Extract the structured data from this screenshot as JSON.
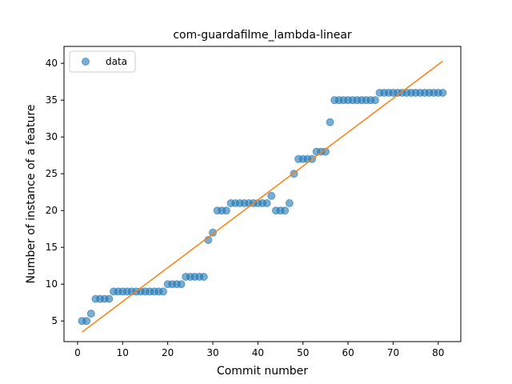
{
  "chart_data": {
    "type": "scatter",
    "title": "com-guardafilme_lambda-linear",
    "xlabel": "Commit number",
    "ylabel": "Number of instance of a feature",
    "xlim": [
      -3,
      85
    ],
    "ylim": [
      2.2,
      42.3
    ],
    "xticks": [
      0,
      10,
      20,
      30,
      40,
      50,
      60,
      70,
      80
    ],
    "yticks": [
      5,
      10,
      15,
      20,
      25,
      30,
      35,
      40
    ],
    "grid": false,
    "legend": {
      "position": "top-left",
      "entries": [
        "data"
      ]
    },
    "colors": {
      "data": "#1f77b4",
      "fit": "#ff7f0e"
    },
    "series": [
      {
        "name": "data",
        "type": "scatter",
        "x": [
          1,
          2,
          3,
          4,
          5,
          6,
          7,
          8,
          9,
          10,
          11,
          12,
          13,
          14,
          15,
          16,
          17,
          18,
          19,
          20,
          21,
          22,
          23,
          24,
          25,
          26,
          27,
          28,
          29,
          30,
          31,
          32,
          33,
          34,
          35,
          36,
          37,
          38,
          39,
          40,
          41,
          42,
          43,
          44,
          45,
          46,
          47,
          48,
          49,
          50,
          51,
          52,
          53,
          54,
          55,
          56,
          57,
          58,
          59,
          60,
          61,
          62,
          63,
          64,
          65,
          66,
          67,
          68,
          69,
          70,
          71,
          72,
          73,
          74,
          75,
          76,
          77,
          78,
          79,
          80,
          81
        ],
        "y": [
          5,
          5,
          6,
          8,
          8,
          8,
          8,
          9,
          9,
          9,
          9,
          9,
          9,
          9,
          9,
          9,
          9,
          9,
          9,
          10,
          10,
          10,
          10,
          11,
          11,
          11,
          11,
          11,
          16,
          17,
          20,
          20,
          20,
          21,
          21,
          21,
          21,
          21,
          21,
          21,
          21,
          21,
          22,
          20,
          20,
          20,
          21,
          25,
          27,
          27,
          27,
          27,
          28,
          28,
          28,
          32,
          35,
          35,
          35,
          35,
          35,
          35,
          35,
          35,
          35,
          35,
          36,
          36,
          36,
          36,
          36,
          36,
          36,
          36,
          36,
          36,
          36,
          36,
          36,
          36,
          36
        ]
      },
      {
        "name": "",
        "type": "line",
        "x": [
          1,
          81
        ],
        "y": [
          3.5,
          40.3
        ]
      }
    ]
  }
}
